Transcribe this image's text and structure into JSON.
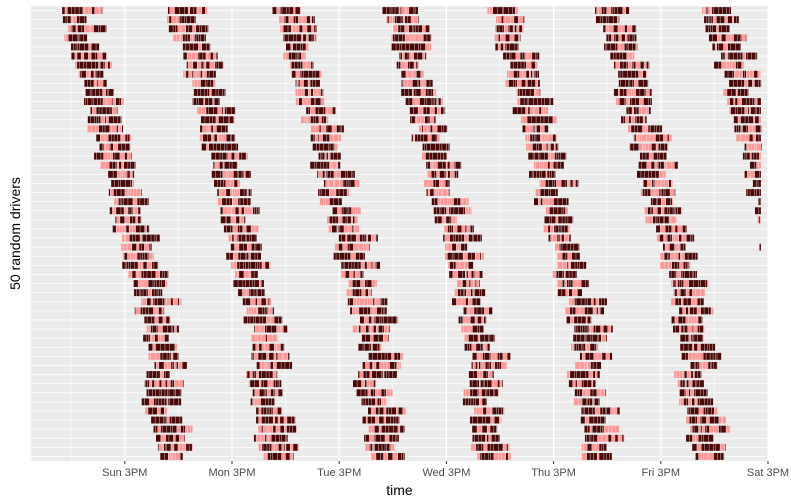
{
  "chart_data": {
    "type": "timeline",
    "title": "",
    "xlabel": "time",
    "ylabel": "50 random drivers",
    "x_unit": "hours since Sun 00:00",
    "xlim": [
      -6,
      159
    ],
    "x_ticks": [
      {
        "value": 15,
        "label": "Sun  3PM"
      },
      {
        "value": 39,
        "label": "Mon  3PM"
      },
      {
        "value": 63,
        "label": "Tue  3PM"
      },
      {
        "value": 87,
        "label": "Wed  3PM"
      },
      {
        "value": 111,
        "label": "Thu  3PM"
      },
      {
        "value": 135,
        "label": "Fri  3PM"
      },
      {
        "value": 159,
        "label": "Sat  3PM"
      }
    ],
    "grid": true,
    "n_drivers": 50,
    "colors": {
      "panel": "#ebebeb",
      "grid_major": "#ffffff",
      "grid_minor": "#f5f5f5",
      "active": "#4a0a0a",
      "idle": "#ff9999"
    },
    "legend": "none"
  }
}
